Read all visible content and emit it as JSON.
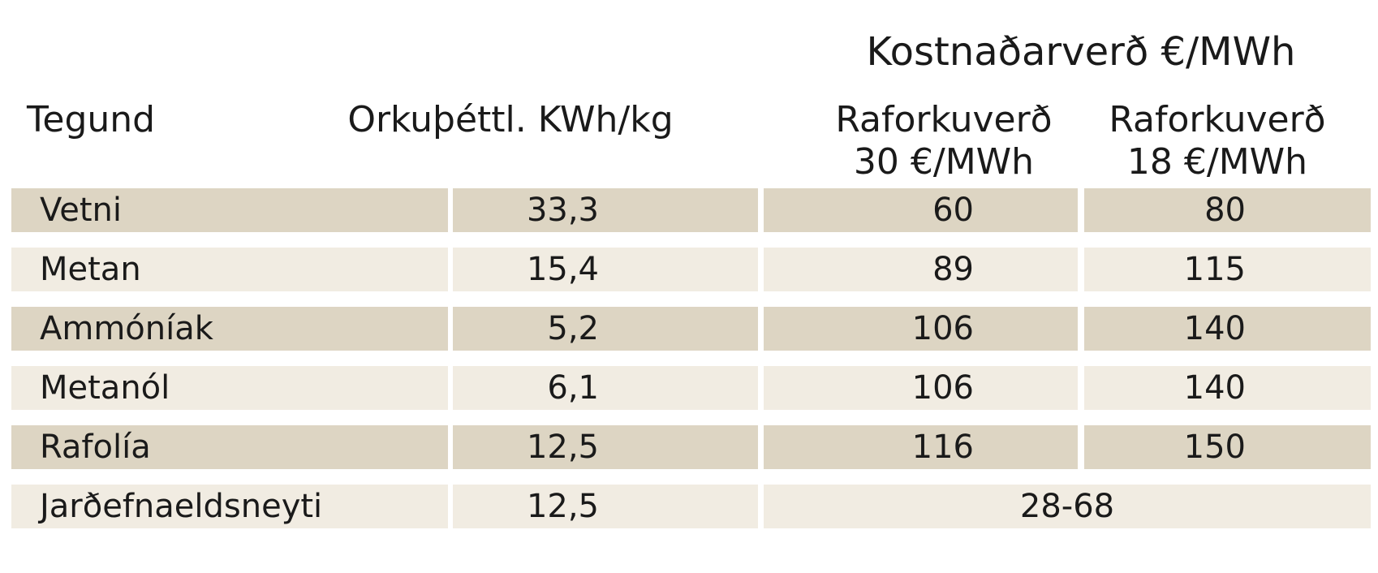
{
  "header": {
    "group_title": "Kostnaðarverð €/MWh",
    "columns": [
      [
        "Tegund"
      ],
      [
        "Orkuþéttl. KWh/kg"
      ],
      [
        "Raforkuverð",
        "30 €/MWh"
      ],
      [
        "Raforkuverð",
        "18 €/MWh"
      ]
    ]
  },
  "table": {
    "rows": [
      [
        "Vetni",
        "33,3",
        "60",
        "80"
      ],
      [
        "Metan",
        "15,4",
        "89",
        "115"
      ],
      [
        "Ammóníak",
        "5,2",
        "106",
        "140"
      ],
      [
        "Metanól",
        "6,1",
        "106",
        "140"
      ],
      [
        "Rafolía",
        "12,5",
        "116",
        "150"
      ],
      [
        "Jarðefnaeldsneyti",
        "12,5",
        "28-68"
      ]
    ]
  }
}
